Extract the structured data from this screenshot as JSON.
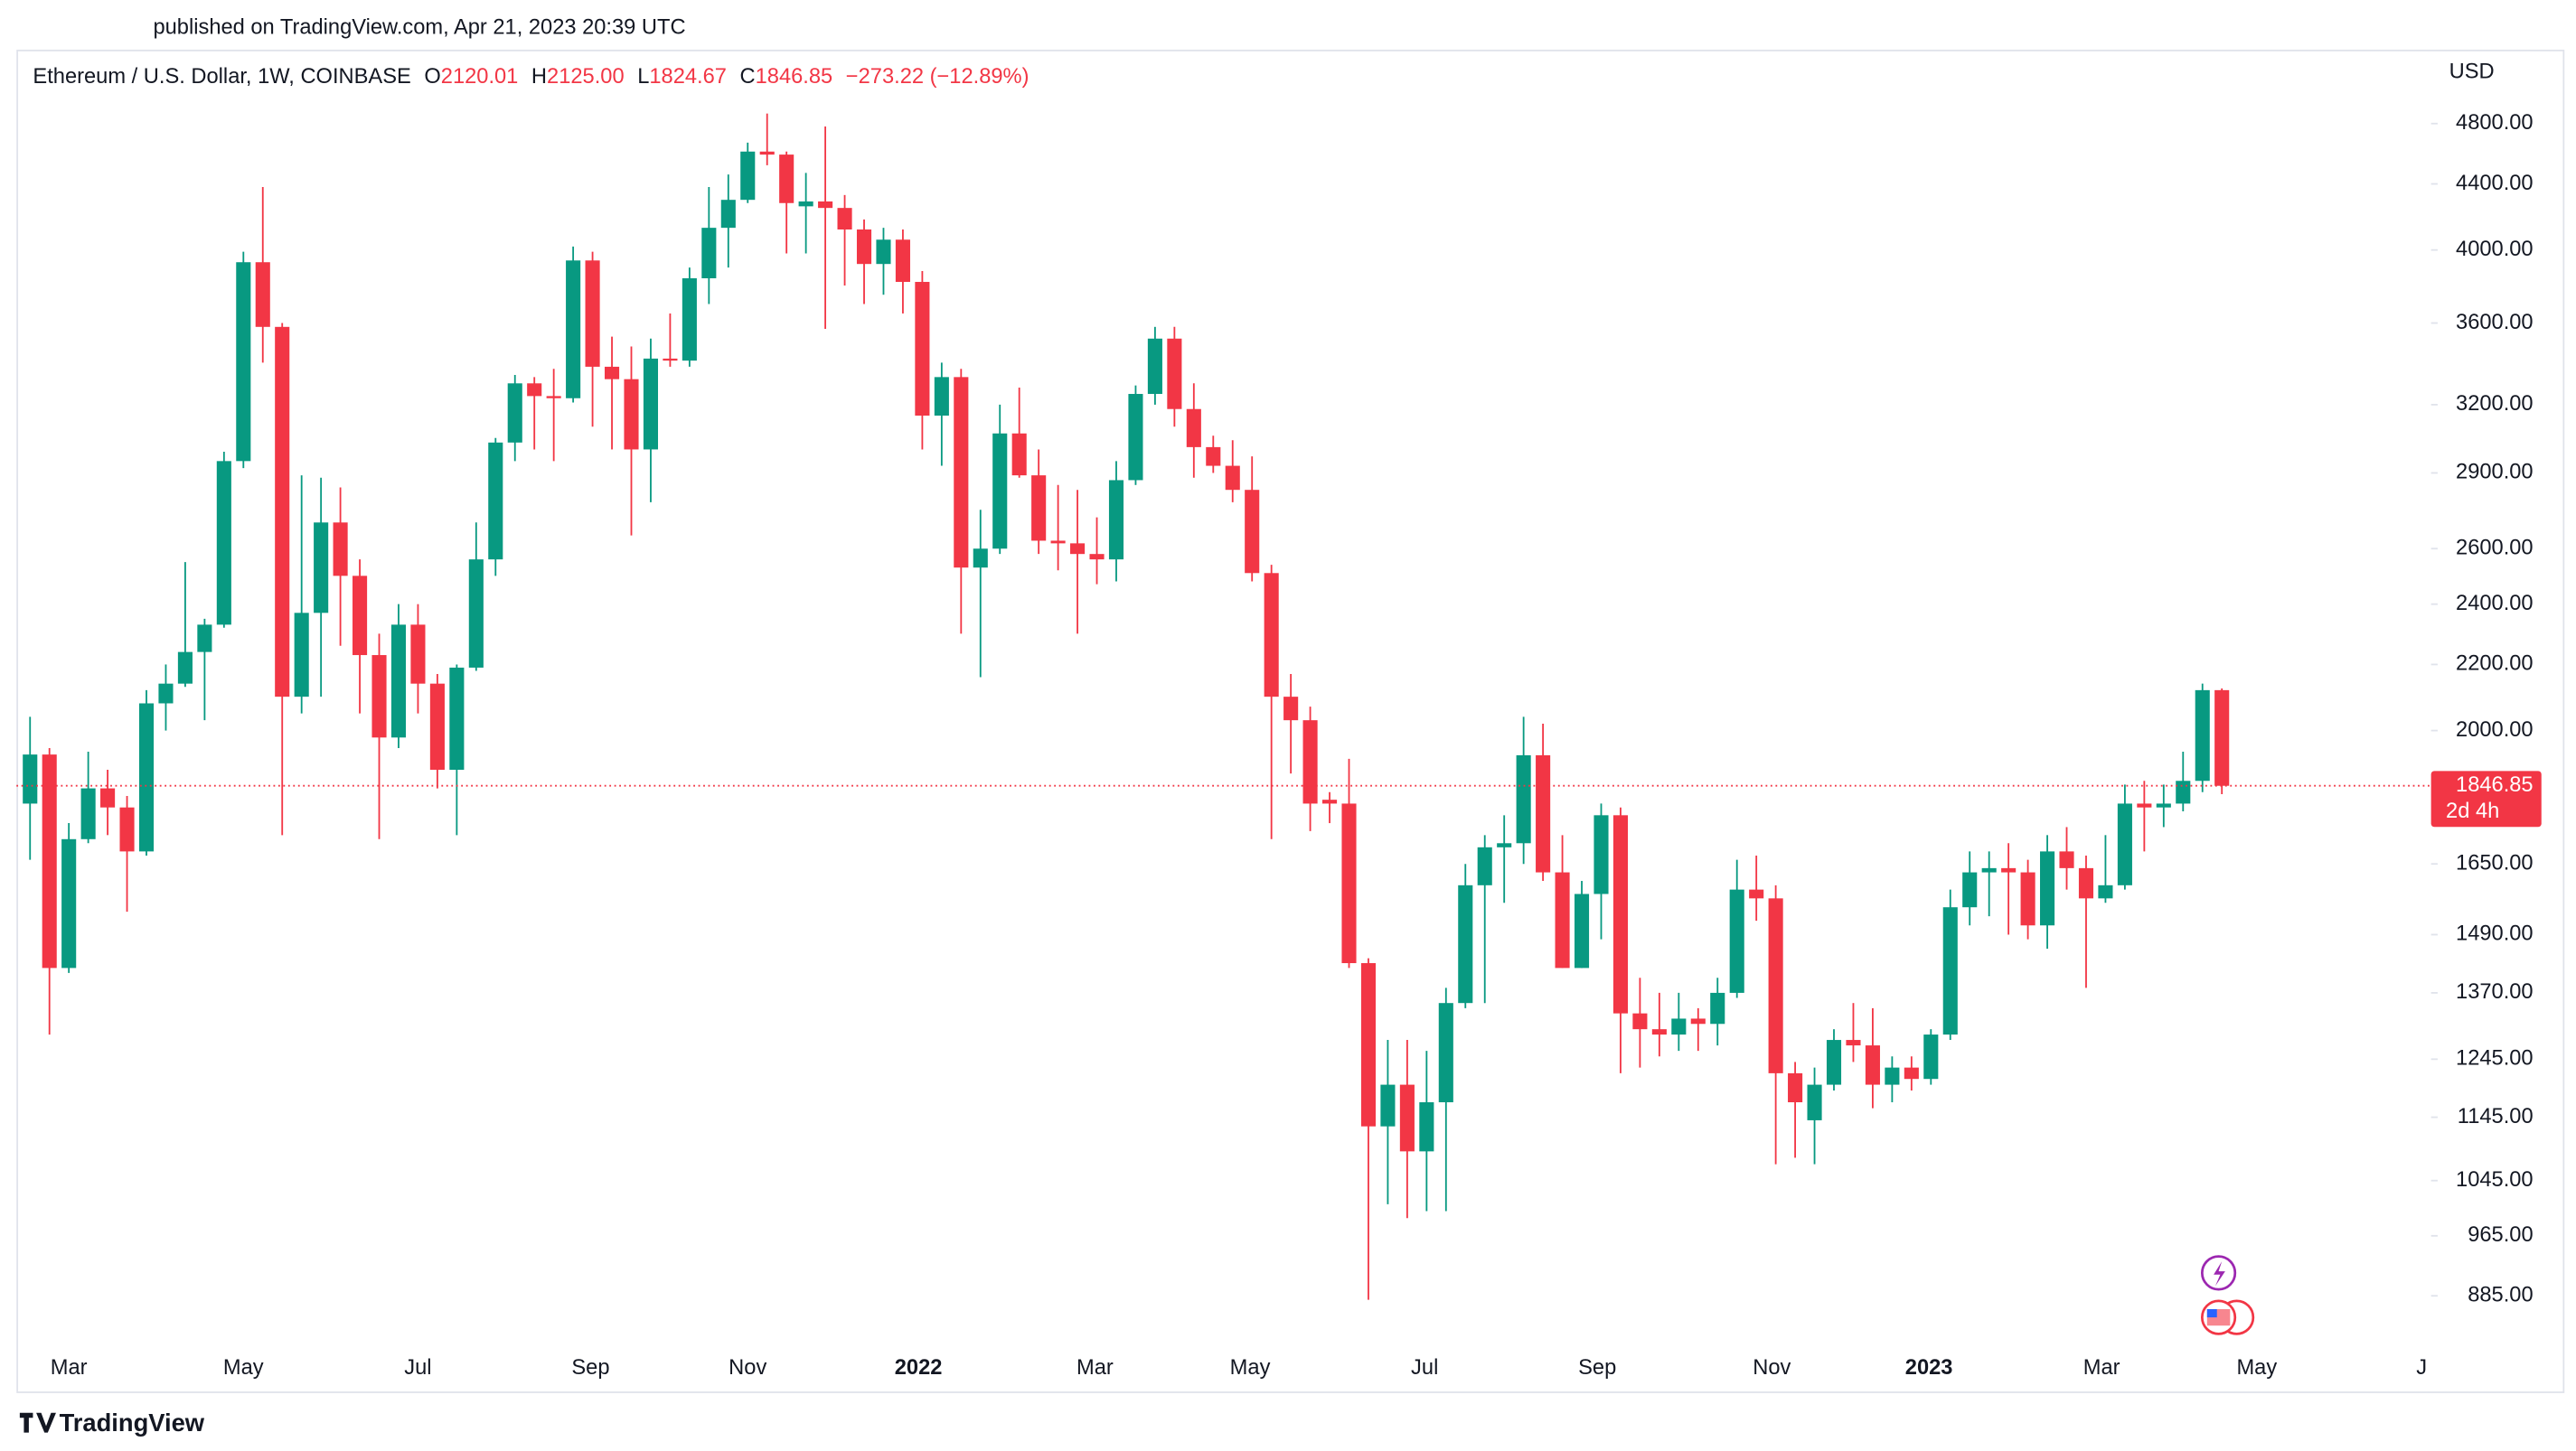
{
  "header": {
    "published": "published on TradingView.com, Apr 21, 2023 20:39 UTC",
    "brand": "TradingView"
  },
  "chart_data": {
    "type": "candlestick",
    "symbol": "Ethereum / U.S. Dollar, 1W, COINBASE",
    "ohlc_labels": [
      "O",
      "H",
      "L",
      "C"
    ],
    "ohlc_value_labels": [
      "2120.01",
      "2125.00",
      "1824.67",
      "1846.85"
    ],
    "change": "−273.22 (−12.89%)",
    "currency": "USD",
    "countdown": "2d 4h",
    "up_color": "#089981",
    "down_color": "#f23645",
    "log_scale": true,
    "grid": false,
    "open": [
      1800,
      1932,
      1420,
      1710,
      1840,
      1790,
      1680,
      2080,
      2140,
      2240,
      2330,
      2950,
      3930,
      3580,
      2100,
      2370,
      2700,
      2500,
      2230,
      1980,
      2330,
      2140,
      1890,
      2190,
      2560,
      3030,
      3300,
      3240,
      3230,
      3940,
      3380,
      3320,
      3000,
      3420,
      3410,
      3840,
      4130,
      4300,
      4610,
      4590,
      4260,
      4290,
      4250,
      4120,
      3920,
      4060,
      3820,
      3150,
      3330,
      2530,
      2600,
      3070,
      2890,
      2630,
      2620,
      2580,
      2560,
      2870,
      3250,
      3520,
      3180,
      3010,
      2930,
      2830,
      2510,
      2100,
      2030,
      1810,
      1800,
      1430,
      1130,
      1200,
      1090,
      1170,
      1350,
      1600,
      1690,
      1700,
      1930,
      1630,
      1420,
      1580,
      1770,
      1330,
      1300,
      1290,
      1320,
      1310,
      1370,
      1590,
      1570,
      1220,
      1140,
      1200,
      1280,
      1270,
      1200,
      1230,
      1210,
      1290,
      1550,
      1630,
      1640,
      1630,
      1510,
      1680,
      1640,
      1570,
      1600,
      1800,
      1790,
      1800,
      1860,
      2120.01
    ],
    "high": [
      2040,
      1950,
      1750,
      1940,
      1890,
      1820,
      2120,
      2200,
      2550,
      2350,
      2990,
      3990,
      4380,
      3600,
      2890,
      2880,
      2840,
      2560,
      2300,
      2400,
      2400,
      2170,
      2200,
      2700,
      3050,
      3340,
      3330,
      3370,
      4020,
      3990,
      3530,
      3480,
      3520,
      3650,
      3900,
      4380,
      4460,
      4670,
      4870,
      4610,
      4470,
      4780,
      4330,
      4180,
      4130,
      4120,
      3880,
      3400,
      3370,
      2750,
      3200,
      3280,
      3000,
      2850,
      2830,
      2720,
      2950,
      3290,
      3580,
      3580,
      3300,
      3060,
      3040,
      2970,
      2540,
      2170,
      2070,
      1830,
      1920,
      1440,
      1280,
      1280,
      1260,
      1380,
      1650,
      1720,
      1770,
      2040,
      2020,
      1720,
      1610,
      1800,
      1790,
      1400,
      1370,
      1370,
      1340,
      1400,
      1660,
      1670,
      1600,
      1240,
      1230,
      1300,
      1350,
      1340,
      1250,
      1250,
      1300,
      1590,
      1680,
      1680,
      1700,
      1660,
      1720,
      1740,
      1670,
      1720,
      1850,
      1860,
      1850,
      1940,
      2140,
      2125
    ],
    "low": [
      1660,
      1290,
      1410,
      1700,
      1720,
      1540,
      1670,
      2000,
      2130,
      2030,
      2320,
      2920,
      3400,
      1720,
      2050,
      2100,
      2260,
      2050,
      1710,
      1950,
      2050,
      1840,
      1720,
      2180,
      2500,
      2950,
      3000,
      2950,
      3210,
      3100,
      3000,
      2650,
      2780,
      3380,
      3380,
      3700,
      3900,
      4280,
      4520,
      3980,
      3980,
      3570,
      3800,
      3700,
      3750,
      3650,
      3000,
      2930,
      2300,
      2160,
      2580,
      2880,
      2580,
      2520,
      2300,
      2470,
      2480,
      2850,
      3200,
      3100,
      2880,
      2900,
      2780,
      2480,
      1710,
      1880,
      1730,
      1750,
      1420,
      880,
      1010,
      990,
      1000,
      1000,
      1340,
      1350,
      1560,
      1650,
      1610,
      1420,
      1420,
      1480,
      1220,
      1230,
      1250,
      1260,
      1260,
      1270,
      1360,
      1520,
      1070,
      1080,
      1070,
      1190,
      1240,
      1160,
      1170,
      1190,
      1200,
      1280,
      1510,
      1530,
      1490,
      1480,
      1460,
      1590,
      1380,
      1560,
      1590,
      1680,
      1740,
      1780,
      1830,
      1824.67
    ],
    "close": [
      1932,
      1420,
      1710,
      1840,
      1790,
      1680,
      2080,
      2140,
      2240,
      2330,
      2950,
      3930,
      3580,
      2100,
      2370,
      2700,
      2500,
      2230,
      1980,
      2330,
      2140,
      1890,
      2190,
      2560,
      3030,
      3300,
      3240,
      3230,
      3940,
      3380,
      3320,
      3000,
      3420,
      3410,
      3840,
      4130,
      4300,
      4610,
      4590,
      4280,
      4290,
      4250,
      4120,
      3920,
      4060,
      3820,
      3150,
      3330,
      2530,
      2600,
      3070,
      2890,
      2630,
      2620,
      2580,
      2560,
      2870,
      3250,
      3520,
      3180,
      3010,
      2930,
      2830,
      2510,
      2100,
      2030,
      1800,
      1800,
      1430,
      1130,
      1200,
      1090,
      1170,
      1350,
      1600,
      1690,
      1700,
      1930,
      1630,
      1420,
      1580,
      1770,
      1330,
      1300,
      1290,
      1320,
      1310,
      1370,
      1590,
      1570,
      1220,
      1170,
      1200,
      1280,
      1270,
      1200,
      1230,
      1210,
      1290,
      1550,
      1630,
      1640,
      1630,
      1510,
      1680,
      1640,
      1570,
      1600,
      1800,
      1790,
      1800,
      1860,
      2120,
      1846.85
    ],
    "xlim": [
      -0.7,
      123.7
    ],
    "xticks": [
      {
        "value": 2,
        "label": "Mar"
      },
      {
        "value": 11,
        "label": "May"
      },
      {
        "value": 20,
        "label": "Jul"
      },
      {
        "value": 28.9,
        "label": "Sep"
      },
      {
        "value": 37,
        "label": "Nov"
      },
      {
        "value": 45.8,
        "label": "2022"
      },
      {
        "value": 54.9,
        "label": "Mar"
      },
      {
        "value": 62.9,
        "label": "May"
      },
      {
        "value": 71.9,
        "label": "Jul"
      },
      {
        "value": 80.8,
        "label": "Sep"
      },
      {
        "value": 89.8,
        "label": "Nov"
      },
      {
        "value": 97.9,
        "label": "2023"
      },
      {
        "value": 106.8,
        "label": "Mar"
      },
      {
        "value": 114.8,
        "label": "May"
      },
      {
        "value": 123.3,
        "label": "J"
      }
    ],
    "ylim": [
      822,
      5340
    ],
    "yticks": [
      {
        "value": 885,
        "label": "885.00"
      },
      {
        "value": 965,
        "label": "965.00"
      },
      {
        "value": 1045,
        "label": "1045.00"
      },
      {
        "value": 1145,
        "label": "1145.00"
      },
      {
        "value": 1245,
        "label": "1245.00"
      },
      {
        "value": 1370,
        "label": "1370.00"
      },
      {
        "value": 1490,
        "label": "1490.00"
      },
      {
        "value": 1650,
        "label": "1650.00"
      },
      {
        "value": 2000,
        "label": "2000.00"
      },
      {
        "value": 2200,
        "label": "2200.00"
      },
      {
        "value": 2400,
        "label": "2400.00"
      },
      {
        "value": 2600,
        "label": "2600.00"
      },
      {
        "value": 2900,
        "label": "2900.00"
      },
      {
        "value": 3200,
        "label": "3200.00"
      },
      {
        "value": 3600,
        "label": "3600.00"
      },
      {
        "value": 4000,
        "label": "4000.00"
      },
      {
        "value": 4400,
        "label": "4400.00"
      },
      {
        "value": 4800,
        "label": "4800.00"
      }
    ]
  }
}
